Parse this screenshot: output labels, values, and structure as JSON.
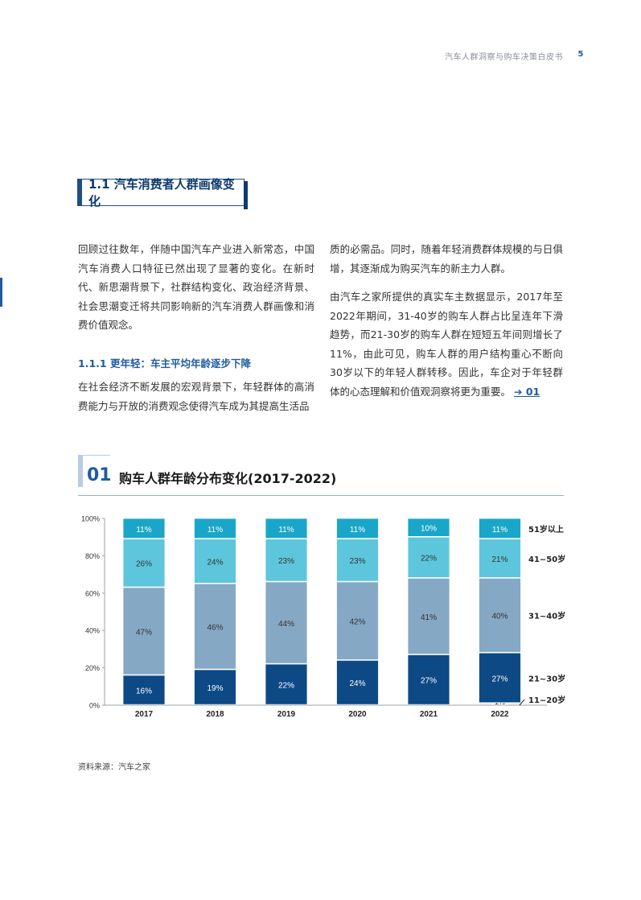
{
  "header": {
    "doc_title": "汽车人群洞察与购车决策白皮书",
    "page_number": "5"
  },
  "section": {
    "title": "1.1 汽车消费者人群画像变化"
  },
  "body": {
    "left_p1": "回顾过往数年，伴随中国汽车产业进入新常态，中国汽车消费人口特征已然出现了显著的变化。在新时代、新思潮背景下，社群结构变化、政治经济背景、社会思潮变迁将共同影响新的汽车消费人群画像和消费价值观念。",
    "subsection_title": "1.1.1 更年轻：车主平均年龄逐步下降",
    "left_p2": "在社会经济不断发展的宏观背景下，年轻群体的高消费能力与开放的消费观念使得汽车成为其提高生活品",
    "right_p1": "质的必需品。同时，随着年轻消费群体规模的与日俱增，其逐渐成为购买汽车的新主力人群。",
    "right_p2": "由汽车之家所提供的真实车主数据显示，2017年至2022年期间，31-40岁的购车人群占比呈连年下滑趋势，而21-30岁的购车人群在短短五年间则增长了11%，由此可见，购车人群的用户结构重心不断向30岁以下的年轻人群转移。因此，车企对于年轻群体的心态理解和价值观洞察将更为重要。",
    "right_p2_ref": "➔ 01"
  },
  "figure": {
    "number": "01",
    "title": "购车人群年龄分布变化(2017-2022)",
    "source": "资料来源：汽车之家"
  },
  "chart_data": {
    "type": "bar",
    "stacked": true,
    "categories": [
      "2017",
      "2018",
      "2019",
      "2020",
      "2021",
      "2022"
    ],
    "y_ticks": [
      "0%",
      "20%",
      "40%",
      "60%",
      "80%",
      "100%"
    ],
    "ylim": [
      0,
      100
    ],
    "series": [
      {
        "name": "11~20岁",
        "values": [
          0,
          0,
          0,
          0,
          0,
          1
        ],
        "labels": [
          "0%",
          "0%",
          "0%",
          "0%",
          "0%",
          "1%"
        ],
        "color": "#cfdde9"
      },
      {
        "name": "21~30岁",
        "values": [
          16,
          19,
          22,
          24,
          27,
          27
        ],
        "labels": [
          "16%",
          "19%",
          "22%",
          "24%",
          "27%",
          "27%"
        ],
        "color": "#0d4a85"
      },
      {
        "name": "31~40岁",
        "values": [
          47,
          46,
          44,
          42,
          41,
          40
        ],
        "labels": [
          "47%",
          "46%",
          "44%",
          "42%",
          "41%",
          "40%"
        ],
        "color": "#85a8c4"
      },
      {
        "name": "41~50岁",
        "values": [
          26,
          24,
          23,
          23,
          22,
          21
        ],
        "labels": [
          "26%",
          "24%",
          "23%",
          "23%",
          "22%",
          "21%"
        ],
        "color": "#5ec6dc"
      },
      {
        "name": "51岁以上",
        "values": [
          11,
          11,
          11,
          11,
          10,
          11
        ],
        "labels": [
          "11%",
          "11%",
          "11%",
          "11%",
          "10%",
          "11%"
        ],
        "color": "#1aa6c9"
      }
    ],
    "legend_placement": "right",
    "grid": false
  }
}
